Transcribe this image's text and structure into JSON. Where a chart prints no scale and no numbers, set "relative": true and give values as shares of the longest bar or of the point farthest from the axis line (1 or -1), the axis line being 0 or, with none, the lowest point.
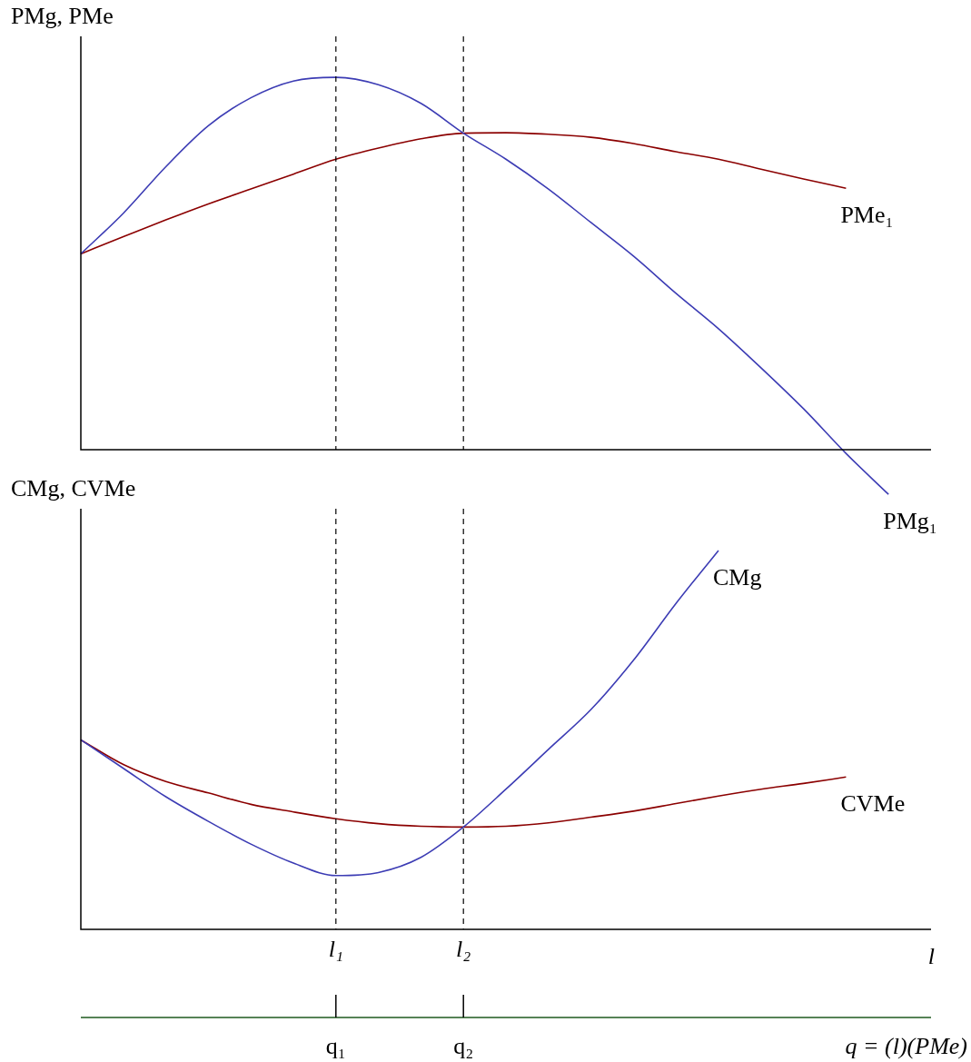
{
  "chart_data": [
    {
      "type": "line",
      "relative": true,
      "ylabel": "PMg, PMe",
      "categories": [
        null,
        null,
        null,
        null,
        null,
        null,
        "l₁",
        null,
        null,
        "l₂",
        null,
        null,
        null,
        null,
        null,
        null,
        null,
        null,
        null,
        null,
        null
      ],
      "tick_labels": false,
      "legend": false,
      "grid": false,
      "marker": "none",
      "ref_lines": [
        {
          "axis": "x",
          "value": "l₁",
          "color": "#000000",
          "line_style": "dashed"
        },
        {
          "axis": "x",
          "value": "l₂",
          "color": "#000000",
          "line_style": "dashed"
        }
      ],
      "series": [
        {
          "name": "PMg₁",
          "color": "#3c3cb4",
          "values": [
            0.526,
            0.635,
            0.76,
            0.87,
            0.945,
            0.99,
            1,
            0.98,
            0.93,
            0.85,
            0.78,
            0.7,
            0.61,
            0.52,
            0.42,
            0.325,
            0.22,
            0.11,
            -0.01,
            -0.12,
            null
          ]
        },
        {
          "name": "PMe₁",
          "color": "#8b0000",
          "values": [
            0.526,
            0.572,
            0.617,
            0.66,
            0.7,
            0.74,
            0.78,
            0.81,
            0.835,
            0.85,
            0.851,
            0.847,
            0.839,
            0.822,
            0.8,
            0.78,
            0.753,
            0.727,
            0.702,
            null,
            null
          ]
        }
      ]
    },
    {
      "type": "line",
      "relative": true,
      "ylabel": "CMg, CVMe",
      "xlabel": "l",
      "categories": [
        null,
        null,
        null,
        null,
        null,
        null,
        "l₁",
        null,
        null,
        "l₂",
        null,
        null,
        null,
        null,
        null,
        null,
        null,
        null,
        null,
        null,
        null
      ],
      "tick_labels": "x",
      "legend": false,
      "grid": false,
      "marker": "none",
      "ref_lines": [
        {
          "axis": "x",
          "value": "l₁",
          "color": "#000000",
          "line_style": "dashed"
        },
        {
          "axis": "x",
          "value": "l₂",
          "color": "#000000",
          "line_style": "dashed"
        }
      ],
      "annotations": [
        {
          "text": "q₁",
          "x": "l₁"
        },
        {
          "text": "q₂",
          "x": "l₂"
        },
        "q = (l)(PMe)"
      ],
      "series": [
        {
          "name": "CMg",
          "color": "#3c3cb4",
          "values": [
            0.5,
            0.425,
            0.35,
            0.285,
            0.225,
            0.175,
            0.142,
            0.15,
            0.19,
            0.27,
            0.37,
            0.475,
            0.58,
            0.71,
            0.86,
            1,
            null,
            null,
            null,
            null,
            null
          ]
        },
        {
          "name": "CVMe",
          "color": "#8b0000",
          "values": [
            0.5,
            0.435,
            0.39,
            0.36,
            0.33,
            0.31,
            0.292,
            0.279,
            0.272,
            0.27,
            0.272,
            0.281,
            0.296,
            0.312,
            0.332,
            0.352,
            0.37,
            0.385,
            0.402,
            null,
            null
          ]
        }
      ]
    }
  ]
}
